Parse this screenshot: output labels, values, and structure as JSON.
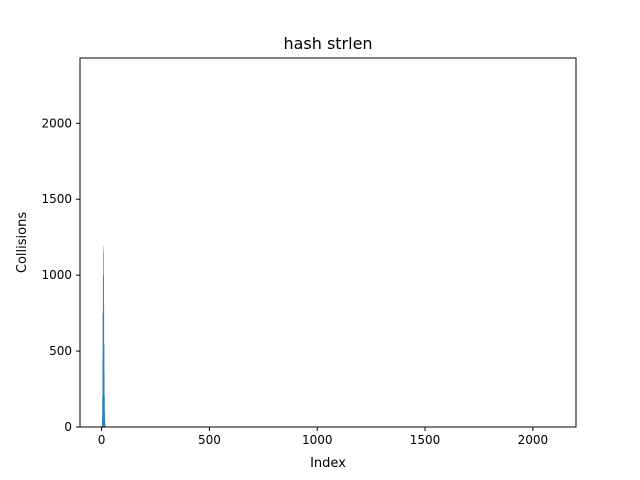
{
  "chart_data": {
    "type": "bar",
    "title": "hash strlen",
    "xlabel": "Index",
    "ylabel": "Collisions",
    "xlim": [
      -100,
      2200
    ],
    "ylim": [
      0,
      2430
    ],
    "xticks": [
      0,
      500,
      1000,
      1500,
      2000
    ],
    "yticks": [
      0,
      500,
      1000,
      1500,
      2000
    ],
    "grid": false,
    "bar_color": "#1f77b4",
    "points": [
      {
        "x": 1,
        "value": 0
      },
      {
        "x": 2,
        "value": 8
      },
      {
        "x": 3,
        "value": 60
      },
      {
        "x": 4,
        "value": 200
      },
      {
        "x": 5,
        "value": 450
      },
      {
        "x": 6,
        "value": 750
      },
      {
        "x": 7,
        "value": 1000
      },
      {
        "x": 8,
        "value": 1190
      },
      {
        "x": 9,
        "value": 1150
      },
      {
        "x": 10,
        "value": 1000
      },
      {
        "x": 11,
        "value": 800
      },
      {
        "x": 12,
        "value": 550
      },
      {
        "x": 13,
        "value": 350
      },
      {
        "x": 14,
        "value": 200
      },
      {
        "x": 15,
        "value": 100
      },
      {
        "x": 16,
        "value": 50
      },
      {
        "x": 17,
        "value": 20
      },
      {
        "x": 18,
        "value": 8
      }
    ]
  }
}
